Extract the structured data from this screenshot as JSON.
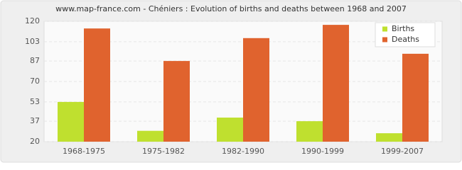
{
  "chart_data": {
    "type": "bar",
    "title": "www.map-france.com - Chéniers : Evolution of births and deaths between 1968 and 2007",
    "categories": [
      "1968-1975",
      "1975-1982",
      "1982-1990",
      "1990-1999",
      "1999-2007"
    ],
    "series": [
      {
        "name": "Births",
        "color": "#bfe02f",
        "values": [
          53,
          29,
          40,
          37,
          27
        ]
      },
      {
        "name": "Deaths",
        "color": "#e0632e",
        "values": [
          114,
          87,
          106,
          117,
          93
        ]
      }
    ],
    "ylim": [
      20,
      120
    ],
    "yticks": [
      20,
      37,
      53,
      70,
      87,
      103,
      120
    ],
    "grid": true,
    "legend": "top-right"
  }
}
